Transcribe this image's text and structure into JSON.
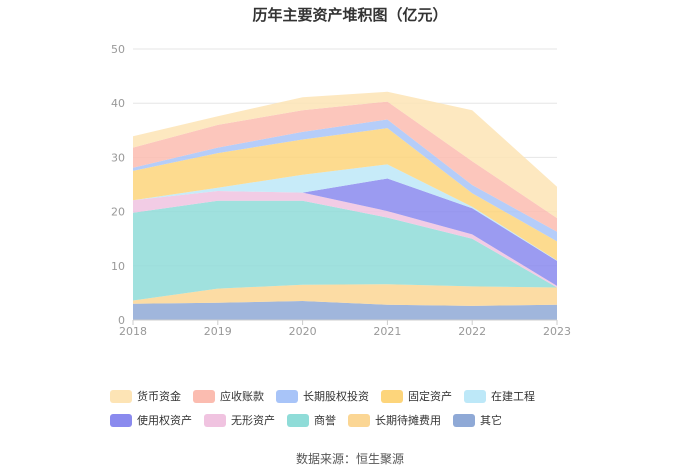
{
  "chart_data": {
    "type": "area",
    "stacked": true,
    "title": "历年主要资产堆积图（亿元）",
    "categories": [
      "2018",
      "2019",
      "2020",
      "2021",
      "2022",
      "2023"
    ],
    "ylim": [
      0,
      50
    ],
    "yticks": [
      0,
      10,
      20,
      30,
      40,
      50
    ],
    "grid": true,
    "legend_position": "bottom",
    "series": [
      {
        "name": "其它",
        "color": "#8fa9d6",
        "values": [
          3.0,
          3.2,
          3.5,
          2.8,
          2.6,
          2.8
        ]
      },
      {
        "name": "长期待摊费用",
        "color": "#fbd694",
        "values": [
          0.6,
          2.6,
          3.0,
          3.8,
          3.6,
          3.2
        ]
      },
      {
        "name": "商誉",
        "color": "#8fdcd8",
        "values": [
          16.2,
          16.2,
          15.5,
          12.3,
          8.8,
          0.0
        ]
      },
      {
        "name": "无形资产",
        "color": "#f0c3e0",
        "values": [
          2.3,
          1.8,
          1.5,
          1.2,
          0.8,
          0.3
        ]
      },
      {
        "name": "使用权资产",
        "color": "#8a8aee",
        "values": [
          0.0,
          0.0,
          0.0,
          6.0,
          4.8,
          4.6
        ]
      },
      {
        "name": "在建工程",
        "color": "#bde8f8",
        "values": [
          0.0,
          0.6,
          3.3,
          2.6,
          0.3,
          0.1
        ]
      },
      {
        "name": "固定资产",
        "color": "#fdd57b",
        "values": [
          5.4,
          6.4,
          6.5,
          6.7,
          2.5,
          3.5
        ]
      },
      {
        "name": "长期股权投资",
        "color": "#a8c4f8",
        "values": [
          0.6,
          1.0,
          1.4,
          1.6,
          1.5,
          1.8
        ]
      },
      {
        "name": "应收账款",
        "color": "#fbbcb0",
        "values": [
          3.7,
          4.2,
          4.0,
          3.3,
          4.4,
          2.5
        ]
      },
      {
        "name": "货币资金",
        "color": "#fde4b5",
        "values": [
          2.1,
          1.6,
          2.4,
          1.8,
          9.4,
          5.8
        ]
      }
    ],
    "legend_order": [
      "货币资金",
      "应收账款",
      "长期股权投资",
      "固定资产",
      "在建工程",
      "使用权资产",
      "无形资产",
      "商誉",
      "长期待摊费用",
      "其它"
    ]
  },
  "source": "数据来源：恒生聚源"
}
